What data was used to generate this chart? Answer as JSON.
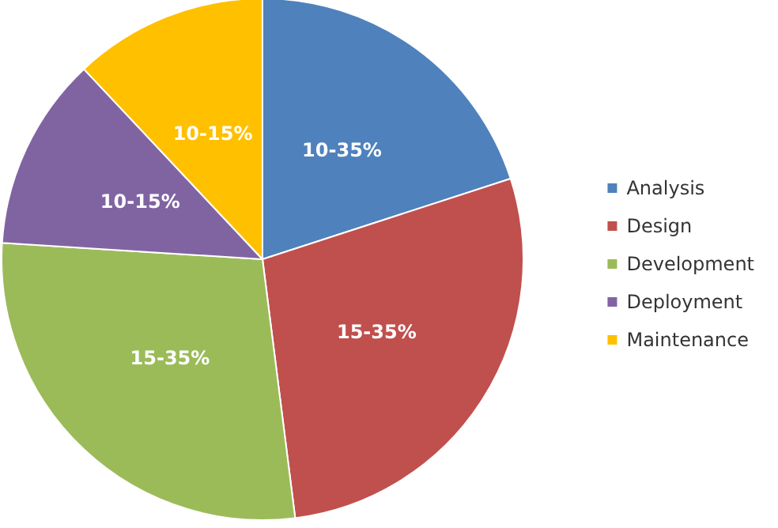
{
  "chart_data": {
    "type": "pie",
    "categories": [
      "Analysis",
      "Design",
      "Development",
      "Deployment",
      "Maintenance"
    ],
    "values": [
      20,
      28,
      28,
      12,
      12
    ],
    "colors": [
      "#4f81bd",
      "#c0504d",
      "#9bbb59",
      "#8064a2",
      "#ffc000"
    ],
    "annotations": [
      "10-35%",
      "15-35%",
      "15-35%",
      "10-15%",
      "10-15%"
    ],
    "legend": "right"
  }
}
